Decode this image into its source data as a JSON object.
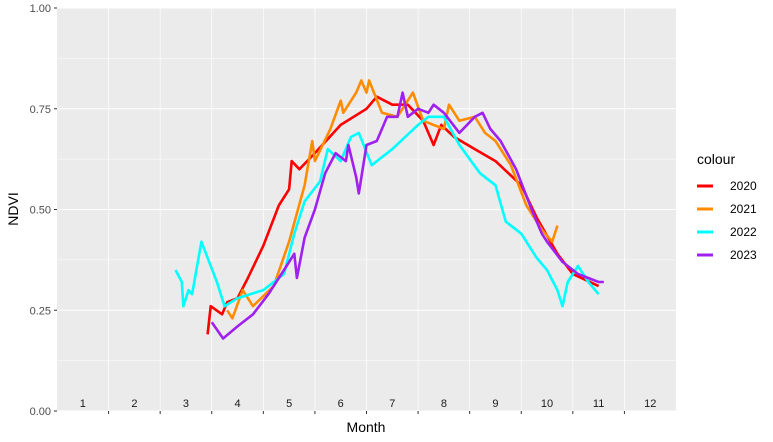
{
  "chart_data": {
    "type": "line",
    "xlabel": "Month",
    "ylabel": "NDVI",
    "ylim": [
      0,
      1
    ],
    "yticks": [
      "0.00",
      "0.25",
      "0.50",
      "0.75",
      "1.00"
    ],
    "xlim": [
      0.5,
      12.5
    ],
    "month_labels": [
      "1",
      "2",
      "3",
      "4",
      "5",
      "6",
      "7",
      "8",
      "9",
      "10",
      "11",
      "12"
    ],
    "grid": true,
    "legend": {
      "title": "colour",
      "position": "right"
    },
    "series": [
      {
        "name": "2020",
        "color": "#FF0000",
        "points": [
          [
            3.42,
            0.19
          ],
          [
            3.48,
            0.26
          ],
          [
            3.7,
            0.24
          ],
          [
            3.8,
            0.27
          ],
          [
            4.0,
            0.28
          ],
          [
            4.2,
            0.33
          ],
          [
            4.5,
            0.41
          ],
          [
            4.8,
            0.51
          ],
          [
            5.0,
            0.55
          ],
          [
            5.05,
            0.62
          ],
          [
            5.2,
            0.6
          ],
          [
            5.5,
            0.64
          ],
          [
            6.0,
            0.71
          ],
          [
            6.5,
            0.75
          ],
          [
            6.7,
            0.78
          ],
          [
            7.0,
            0.76
          ],
          [
            7.3,
            0.76
          ],
          [
            7.6,
            0.72
          ],
          [
            7.8,
            0.66
          ],
          [
            7.95,
            0.71
          ],
          [
            8.2,
            0.68
          ],
          [
            8.6,
            0.65
          ],
          [
            9.0,
            0.62
          ],
          [
            9.5,
            0.56
          ],
          [
            9.8,
            0.48
          ],
          [
            10.2,
            0.39
          ],
          [
            10.5,
            0.34
          ],
          [
            11.0,
            0.31
          ]
        ]
      },
      {
        "name": "2021",
        "color": "#FF8C00",
        "points": [
          [
            3.8,
            0.25
          ],
          [
            3.9,
            0.23
          ],
          [
            4.1,
            0.3
          ],
          [
            4.3,
            0.26
          ],
          [
            4.7,
            0.31
          ],
          [
            5.0,
            0.42
          ],
          [
            5.3,
            0.56
          ],
          [
            5.45,
            0.67
          ],
          [
            5.5,
            0.62
          ],
          [
            5.8,
            0.7
          ],
          [
            6.0,
            0.77
          ],
          [
            6.05,
            0.74
          ],
          [
            6.3,
            0.79
          ],
          [
            6.4,
            0.82
          ],
          [
            6.5,
            0.79
          ],
          [
            6.55,
            0.82
          ],
          [
            6.8,
            0.74
          ],
          [
            7.1,
            0.73
          ],
          [
            7.4,
            0.79
          ],
          [
            7.6,
            0.72
          ],
          [
            7.8,
            0.71
          ],
          [
            8.0,
            0.7
          ],
          [
            8.1,
            0.76
          ],
          [
            8.3,
            0.72
          ],
          [
            8.6,
            0.73
          ],
          [
            8.8,
            0.69
          ],
          [
            9.0,
            0.67
          ],
          [
            9.3,
            0.61
          ],
          [
            9.6,
            0.51
          ],
          [
            9.9,
            0.45
          ],
          [
            10.1,
            0.42
          ],
          [
            10.2,
            0.46
          ]
        ]
      },
      {
        "name": "2022",
        "color": "#00FFFF",
        "points": [
          [
            2.8,
            0.35
          ],
          [
            2.92,
            0.32
          ],
          [
            2.95,
            0.26
          ],
          [
            3.05,
            0.3
          ],
          [
            3.12,
            0.29
          ],
          [
            3.3,
            0.42
          ],
          [
            3.6,
            0.32
          ],
          [
            3.75,
            0.26
          ],
          [
            4.0,
            0.28
          ],
          [
            4.5,
            0.3
          ],
          [
            4.9,
            0.34
          ],
          [
            5.1,
            0.44
          ],
          [
            5.3,
            0.52
          ],
          [
            5.6,
            0.57
          ],
          [
            5.75,
            0.65
          ],
          [
            6.0,
            0.62
          ],
          [
            6.2,
            0.68
          ],
          [
            6.35,
            0.69
          ],
          [
            6.6,
            0.61
          ],
          [
            7.0,
            0.65
          ],
          [
            7.5,
            0.71
          ],
          [
            7.7,
            0.73
          ],
          [
            8.0,
            0.73
          ],
          [
            8.3,
            0.66
          ],
          [
            8.7,
            0.59
          ],
          [
            9.0,
            0.56
          ],
          [
            9.2,
            0.47
          ],
          [
            9.5,
            0.44
          ],
          [
            9.8,
            0.38
          ],
          [
            10.0,
            0.35
          ],
          [
            10.2,
            0.3
          ],
          [
            10.3,
            0.26
          ],
          [
            10.4,
            0.32
          ],
          [
            10.6,
            0.36
          ],
          [
            10.8,
            0.32
          ],
          [
            11.0,
            0.29
          ]
        ]
      },
      {
        "name": "2023",
        "color": "#A020F0",
        "points": [
          [
            3.5,
            0.22
          ],
          [
            3.72,
            0.18
          ],
          [
            4.0,
            0.21
          ],
          [
            4.3,
            0.24
          ],
          [
            4.6,
            0.29
          ],
          [
            4.9,
            0.35
          ],
          [
            5.1,
            0.39
          ],
          [
            5.15,
            0.33
          ],
          [
            5.3,
            0.43
          ],
          [
            5.5,
            0.5
          ],
          [
            5.7,
            0.59
          ],
          [
            5.9,
            0.64
          ],
          [
            6.1,
            0.62
          ],
          [
            6.15,
            0.66
          ],
          [
            6.3,
            0.58
          ],
          [
            6.35,
            0.54
          ],
          [
            6.5,
            0.66
          ],
          [
            6.7,
            0.67
          ],
          [
            6.9,
            0.73
          ],
          [
            7.1,
            0.73
          ],
          [
            7.2,
            0.79
          ],
          [
            7.3,
            0.73
          ],
          [
            7.5,
            0.75
          ],
          [
            7.7,
            0.74
          ],
          [
            7.8,
            0.76
          ],
          [
            8.0,
            0.74
          ],
          [
            8.3,
            0.69
          ],
          [
            8.6,
            0.73
          ],
          [
            8.75,
            0.74
          ],
          [
            8.9,
            0.7
          ],
          [
            9.1,
            0.67
          ],
          [
            9.4,
            0.6
          ],
          [
            9.7,
            0.5
          ],
          [
            9.9,
            0.44
          ],
          [
            10.0,
            0.42
          ],
          [
            10.3,
            0.37
          ],
          [
            10.6,
            0.34
          ],
          [
            11.0,
            0.32
          ],
          [
            11.1,
            0.32
          ]
        ]
      }
    ]
  }
}
